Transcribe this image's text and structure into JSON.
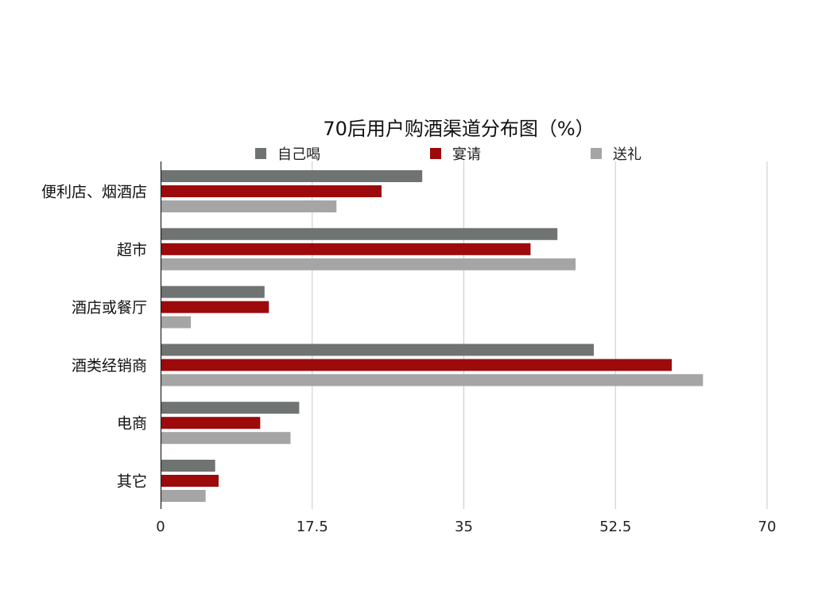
{
  "chart_data": {
    "type": "bar",
    "orientation": "horizontal",
    "title": "70后用户购酒渠道分布图（%）",
    "categories": [
      "便利店、烟酒店",
      "超市",
      "酒店或餐厅",
      "酒类经销商",
      "电商",
      "其它"
    ],
    "series": [
      {
        "name": "自己喝",
        "color": "#6f7472",
        "values": [
          30.2,
          45.8,
          12.0,
          50.0,
          16.0,
          6.3
        ]
      },
      {
        "name": "宴请",
        "color": "#9c0a0c",
        "values": [
          25.5,
          42.7,
          12.5,
          59.0,
          11.5,
          6.7
        ]
      },
      {
        "name": "送礼",
        "color": "#a5a5a5",
        "values": [
          20.3,
          47.9,
          3.5,
          62.6,
          15.0,
          5.2
        ]
      }
    ],
    "xticks": [
      "0",
      "17.5",
      "35",
      "52.5",
      "70"
    ],
    "xlim": [
      0,
      70
    ],
    "grid": true,
    "legend_position": "top"
  }
}
